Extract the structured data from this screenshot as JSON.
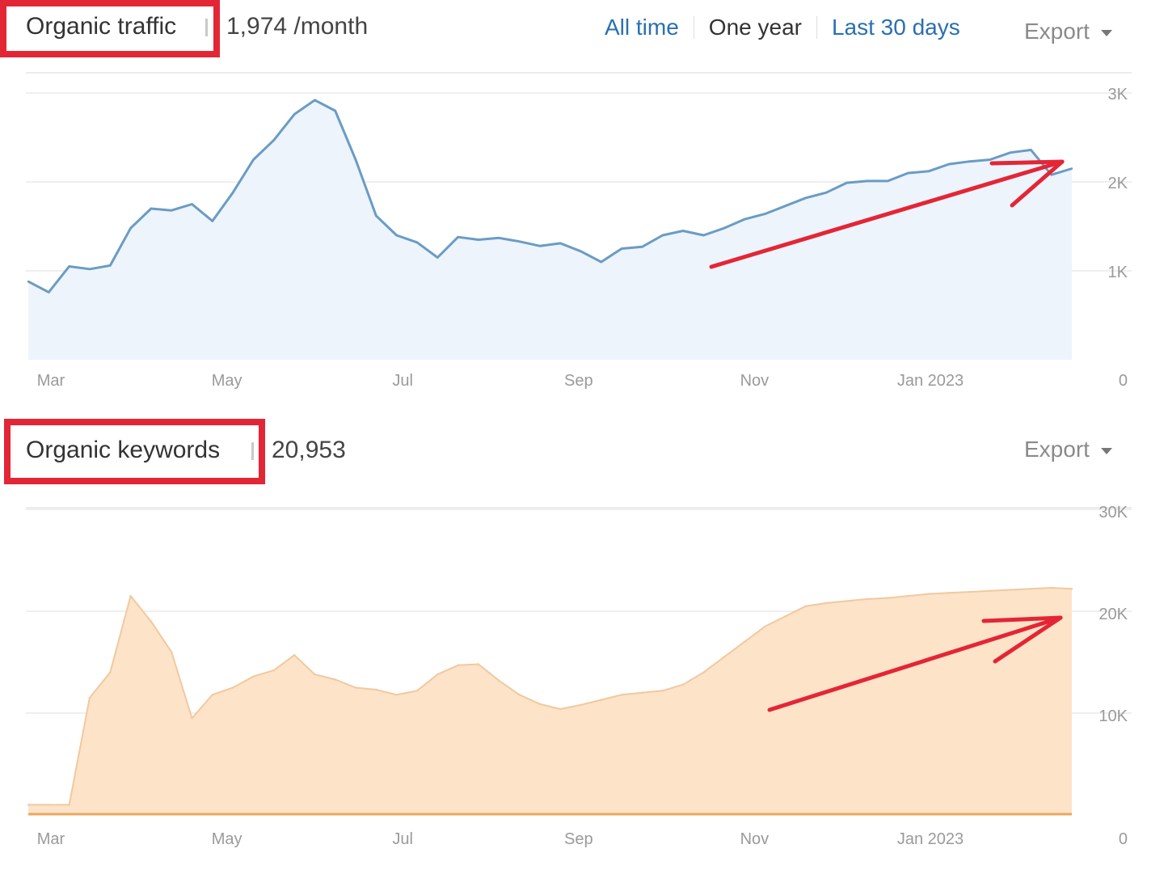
{
  "traffic": {
    "title": "Organic traffic",
    "value": "1,974 /month",
    "tabs": [
      "All time",
      "One year",
      "Last 30 days"
    ],
    "active_tab": "One year",
    "export_label": "Export"
  },
  "keywords": {
    "title": "Organic keywords",
    "value": "20,953",
    "export_label": "Export"
  },
  "colors": {
    "traffic_line": "#6a9cc4",
    "traffic_fill": "#eef4fb",
    "keywords_line": "#f0c9a0",
    "keywords_fill": "#fde3c8",
    "keywords_baseline": "#e8a860",
    "annotation": "#e32636",
    "link": "#2a6fb0"
  },
  "chart_data": [
    {
      "type": "area",
      "x_labels": [
        "Mar",
        "May",
        "Jul",
        "Sep",
        "Nov",
        "Jan 2023"
      ],
      "y_ticks": [
        "0",
        "1K",
        "2K",
        "3K"
      ],
      "ylim": [
        0,
        3000
      ],
      "grid": true,
      "x": [
        "2022-03-01",
        "2022-03-08",
        "2022-03-15",
        "2022-03-22",
        "2022-03-29",
        "2022-04-05",
        "2022-04-12",
        "2022-04-19",
        "2022-04-26",
        "2022-05-03",
        "2022-05-10",
        "2022-05-17",
        "2022-05-24",
        "2022-05-31",
        "2022-06-07",
        "2022-06-14",
        "2022-06-21",
        "2022-06-28",
        "2022-07-05",
        "2022-07-12",
        "2022-07-19",
        "2022-07-26",
        "2022-08-02",
        "2022-08-09",
        "2022-08-16",
        "2022-08-23",
        "2022-08-30",
        "2022-09-06",
        "2022-09-13",
        "2022-09-20",
        "2022-09-27",
        "2022-10-04",
        "2022-10-11",
        "2022-10-18",
        "2022-10-25",
        "2022-11-01",
        "2022-11-08",
        "2022-11-15",
        "2022-11-22",
        "2022-11-29",
        "2022-12-06",
        "2022-12-13",
        "2022-12-20",
        "2022-12-27",
        "2023-01-03",
        "2023-01-10",
        "2023-01-17",
        "2023-01-24",
        "2023-01-31",
        "2023-02-07",
        "2023-02-14",
        "2023-02-21"
      ],
      "values": [
        880,
        760,
        1050,
        1020,
        1060,
        1480,
        1700,
        1680,
        1750,
        1560,
        1880,
        2250,
        2470,
        2760,
        2920,
        2800,
        2250,
        1620,
        1400,
        1320,
        1150,
        1380,
        1350,
        1370,
        1330,
        1280,
        1310,
        1220,
        1100,
        1250,
        1270,
        1400,
        1450,
        1400,
        1480,
        1580,
        1640,
        1730,
        1820,
        1880,
        1990,
        2010,
        2010,
        2100,
        2120,
        2200,
        2230,
        2250,
        2330,
        2360,
        2080,
        2150
      ],
      "series": [
        {
          "name": "",
          "values": "values"
        }
      ]
    },
    {
      "type": "area",
      "x_labels": [
        "Mar",
        "May",
        "Jul",
        "Sep",
        "Nov",
        "Jan 2023"
      ],
      "y_ticks": [
        "0",
        "10K",
        "20K",
        "30K"
      ],
      "ylim": [
        0,
        30000
      ],
      "grid": true,
      "x": [
        "2022-03-01",
        "2022-03-08",
        "2022-03-15",
        "2022-03-22",
        "2022-03-29",
        "2022-04-05",
        "2022-04-12",
        "2022-04-19",
        "2022-04-26",
        "2022-05-03",
        "2022-05-10",
        "2022-05-17",
        "2022-05-24",
        "2022-05-31",
        "2022-06-07",
        "2022-06-14",
        "2022-06-21",
        "2022-06-28",
        "2022-07-05",
        "2022-07-12",
        "2022-07-19",
        "2022-07-26",
        "2022-08-02",
        "2022-08-09",
        "2022-08-16",
        "2022-08-23",
        "2022-08-30",
        "2022-09-06",
        "2022-09-13",
        "2022-09-20",
        "2022-09-27",
        "2022-10-04",
        "2022-10-11",
        "2022-10-18",
        "2022-10-25",
        "2022-11-01",
        "2022-11-08",
        "2022-11-15",
        "2022-11-22",
        "2022-11-29",
        "2022-12-06",
        "2022-12-13",
        "2022-12-20",
        "2022-12-27",
        "2023-01-03",
        "2023-01-10",
        "2023-01-17",
        "2023-01-24",
        "2023-01-31",
        "2023-02-07",
        "2023-02-14",
        "2023-02-21"
      ],
      "values": [
        1000,
        1000,
        1000,
        11500,
        14000,
        21500,
        19000,
        16000,
        9500,
        11800,
        12500,
        13600,
        14200,
        15700,
        13800,
        13300,
        12500,
        12300,
        11800,
        12200,
        13800,
        14700,
        14800,
        13200,
        11800,
        10900,
        10400,
        10800,
        11300,
        11800,
        12000,
        12200,
        12800,
        14000,
        15500,
        17000,
        18500,
        19500,
        20500,
        20800,
        21000,
        21200,
        21300,
        21500,
        21700,
        21800,
        21900,
        22000,
        22100,
        22200,
        22300,
        22200
      ],
      "series": [
        {
          "name": "",
          "values": "values"
        }
      ]
    }
  ]
}
